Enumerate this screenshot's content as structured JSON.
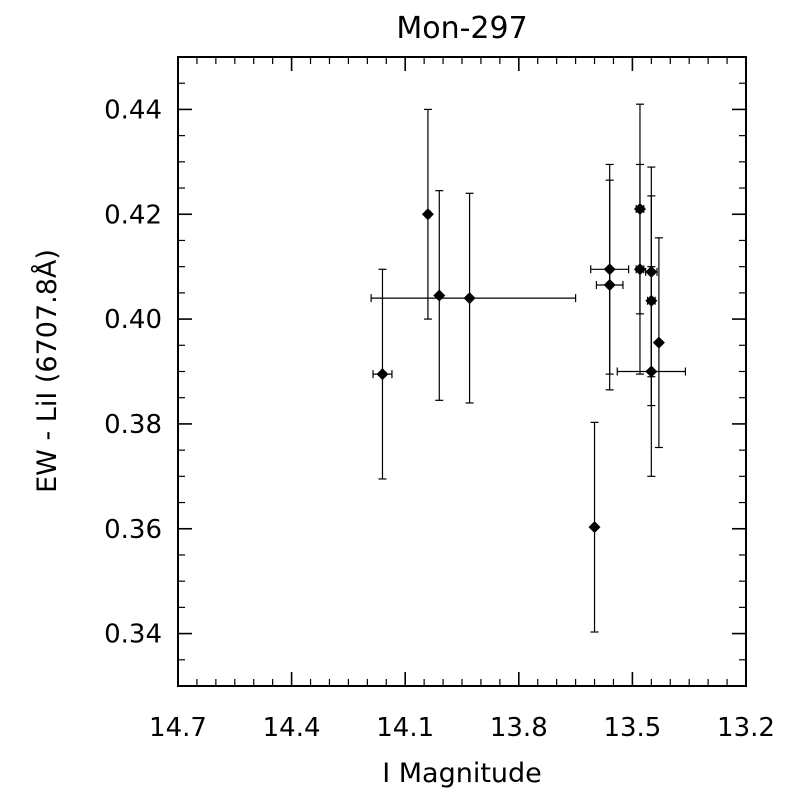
{
  "chart_data": {
    "type": "scatter",
    "title": "Mon-297",
    "xlabel": "I Magnitude",
    "ylabel": "EW - LiI (6707.8Å)",
    "xlim": [
      14.7,
      13.2
    ],
    "ylim": [
      0.33,
      0.45
    ],
    "x_reversed": true,
    "x_ticks": [
      "14.7",
      "14.4",
      "14.1",
      "13.8",
      "13.5",
      "13.2"
    ],
    "y_ticks": [
      "0.34",
      "0.36",
      "0.38",
      "0.40",
      "0.42",
      "0.44"
    ],
    "marker": "diamond",
    "color": "#000000",
    "points": [
      {
        "x": 14.16,
        "y": 0.3895,
        "x_err": 0.025,
        "y_err": 0.02
      },
      {
        "x": 14.04,
        "y": 0.42,
        "x_err": 0.005,
        "y_err": 0.02
      },
      {
        "x": 14.01,
        "y": 0.4045,
        "x_err": 0.0,
        "y_err": 0.02
      },
      {
        "x": 13.93,
        "y": 0.404,
        "x_err": 0.0,
        "y_err": 0.02
      },
      {
        "x": 13.92,
        "y": 0.404,
        "x_err": 0.27,
        "y_err": 0.0
      },
      {
        "x": 13.56,
        "y": 0.4095,
        "x_err": 0.05,
        "y_err": 0.02
      },
      {
        "x": 13.56,
        "y": 0.4065,
        "x_err": 0.035,
        "y_err": 0.02
      },
      {
        "x": 13.6,
        "y": 0.3603,
        "x_err": 0.0,
        "y_err": 0.02
      },
      {
        "x": 13.48,
        "y": 0.421,
        "x_err": 0.01,
        "y_err": 0.02
      },
      {
        "x": 13.48,
        "y": 0.4095,
        "x_err": 0.01,
        "y_err": 0.02
      },
      {
        "x": 13.45,
        "y": 0.409,
        "x_err": 0.015,
        "y_err": 0.02
      },
      {
        "x": 13.45,
        "y": 0.4035,
        "x_err": 0.01,
        "y_err": 0.02
      },
      {
        "x": 13.45,
        "y": 0.39,
        "x_err": 0.09,
        "y_err": 0.02
      },
      {
        "x": 13.43,
        "y": 0.3955,
        "x_err": 0.0,
        "y_err": 0.02
      }
    ]
  }
}
